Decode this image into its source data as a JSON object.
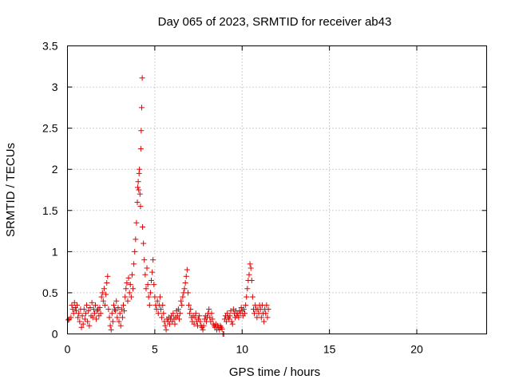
{
  "chart_data": {
    "type": "scatter",
    "title": "Day 065 of 2023, SRMTID for receiver ab43",
    "xlabel": "GPS time / hours",
    "ylabel": "SRMTID / TECUs",
    "xlim": [
      0,
      24
    ],
    "ylim": [
      0,
      3.5
    ],
    "xticks": [
      0,
      5,
      10,
      15,
      20
    ],
    "xtick_labels": [
      "0",
      "5",
      "10",
      "15",
      "20"
    ],
    "yticks": [
      0,
      0.5,
      1,
      1.5,
      2,
      2.5,
      3,
      3.5
    ],
    "ytick_labels": [
      "0",
      "0.5",
      "1",
      "1.5",
      "2",
      "2.5",
      "3",
      "3.5"
    ],
    "grid": true,
    "marker": "+",
    "series": [
      {
        "name": "SRMTID",
        "color": "#e00000",
        "points": [
          [
            0.05,
            0.17
          ],
          [
            0.1,
            0.18
          ],
          [
            0.2,
            0.2
          ],
          [
            0.25,
            0.35
          ],
          [
            0.3,
            0.3
          ],
          [
            0.35,
            0.25
          ],
          [
            0.4,
            0.38
          ],
          [
            0.45,
            0.32
          ],
          [
            0.5,
            0.28
          ],
          [
            0.55,
            0.35
          ],
          [
            0.6,
            0.2
          ],
          [
            0.65,
            0.25
          ],
          [
            0.7,
            0.15
          ],
          [
            0.75,
            0.3
          ],
          [
            0.8,
            0.08
          ],
          [
            0.85,
            0.22
          ],
          [
            0.9,
            0.12
          ],
          [
            0.95,
            0.3
          ],
          [
            1.0,
            0.18
          ],
          [
            1.05,
            0.25
          ],
          [
            1.1,
            0.35
          ],
          [
            1.15,
            0.15
          ],
          [
            1.2,
            0.28
          ],
          [
            1.25,
            0.1
          ],
          [
            1.3,
            0.32
          ],
          [
            1.35,
            0.22
          ],
          [
            1.4,
            0.38
          ],
          [
            1.45,
            0.2
          ],
          [
            1.5,
            0.3
          ],
          [
            1.55,
            0.25
          ],
          [
            1.6,
            0.35
          ],
          [
            1.65,
            0.18
          ],
          [
            1.7,
            0.28
          ],
          [
            1.75,
            0.3
          ],
          [
            1.8,
            0.22
          ],
          [
            1.85,
            0.32
          ],
          [
            1.9,
            0.25
          ],
          [
            1.95,
            0.45
          ],
          [
            2.0,
            0.5
          ],
          [
            2.05,
            0.4
          ],
          [
            2.1,
            0.55
          ],
          [
            2.15,
            0.35
          ],
          [
            2.2,
            0.48
          ],
          [
            2.25,
            0.62
          ],
          [
            2.3,
            0.7
          ],
          [
            2.35,
            0.3
          ],
          [
            2.4,
            0.2
          ],
          [
            2.45,
            0.1
          ],
          [
            2.5,
            0.05
          ],
          [
            2.55,
            0.25
          ],
          [
            2.6,
            0.15
          ],
          [
            2.65,
            0.35
          ],
          [
            2.7,
            0.3
          ],
          [
            2.75,
            0.28
          ],
          [
            2.8,
            0.4
          ],
          [
            2.85,
            0.2
          ],
          [
            2.9,
            0.32
          ],
          [
            2.95,
            0.15
          ],
          [
            3.0,
            0.25
          ],
          [
            3.05,
            0.1
          ],
          [
            3.1,
            0.3
          ],
          [
            3.15,
            0.2
          ],
          [
            3.2,
            0.35
          ],
          [
            3.25,
            0.28
          ],
          [
            3.3,
            0.45
          ],
          [
            3.35,
            0.55
          ],
          [
            3.4,
            0.62
          ],
          [
            3.45,
            0.4
          ],
          [
            3.5,
            0.68
          ],
          [
            3.55,
            0.5
          ],
          [
            3.6,
            0.6
          ],
          [
            3.65,
            0.45
          ],
          [
            3.7,
            0.72
          ],
          [
            3.75,
            0.55
          ],
          [
            3.8,
            0.85
          ],
          [
            3.85,
            1.0
          ],
          [
            3.9,
            1.15
          ],
          [
            3.95,
            1.35
          ],
          [
            4.0,
            1.6
          ],
          [
            4.02,
            1.78
          ],
          [
            4.05,
            1.85
          ],
          [
            4.08,
            1.75
          ],
          [
            4.1,
            1.95
          ],
          [
            4.12,
            2.0
          ],
          [
            4.15,
            1.7
          ],
          [
            4.18,
            1.55
          ],
          [
            4.2,
            2.25
          ],
          [
            4.22,
            2.47
          ],
          [
            4.25,
            2.75
          ],
          [
            4.28,
            3.11
          ],
          [
            4.3,
            1.3
          ],
          [
            4.35,
            1.1
          ],
          [
            4.4,
            0.9
          ],
          [
            4.45,
            0.72
          ],
          [
            4.5,
            0.55
          ],
          [
            4.55,
            0.8
          ],
          [
            4.6,
            0.6
          ],
          [
            4.65,
            0.45
          ],
          [
            4.7,
            0.35
          ],
          [
            4.75,
            0.5
          ],
          [
            4.8,
            0.65
          ],
          [
            4.85,
            0.75
          ],
          [
            4.9,
            0.9
          ],
          [
            4.95,
            0.6
          ],
          [
            5.0,
            0.45
          ],
          [
            5.05,
            0.35
          ],
          [
            5.1,
            0.3
          ],
          [
            5.15,
            0.4
          ],
          [
            5.2,
            0.25
          ],
          [
            5.25,
            0.35
          ],
          [
            5.3,
            0.45
          ],
          [
            5.35,
            0.3
          ],
          [
            5.4,
            0.2
          ],
          [
            5.45,
            0.35
          ],
          [
            5.5,
            0.25
          ],
          [
            5.55,
            0.15
          ],
          [
            5.6,
            0.1
          ],
          [
            5.65,
            0.05
          ],
          [
            5.7,
            0.18
          ],
          [
            5.75,
            0.15
          ],
          [
            5.8,
            0.2
          ],
          [
            5.85,
            0.12
          ],
          [
            5.9,
            0.18
          ],
          [
            5.95,
            0.22
          ],
          [
            6.0,
            0.15
          ],
          [
            6.05,
            0.25
          ],
          [
            6.1,
            0.18
          ],
          [
            6.15,
            0.12
          ],
          [
            6.2,
            0.2
          ],
          [
            6.25,
            0.28
          ],
          [
            6.3,
            0.22
          ],
          [
            6.35,
            0.3
          ],
          [
            6.4,
            0.18
          ],
          [
            6.45,
            0.25
          ],
          [
            6.5,
            0.4
          ],
          [
            6.55,
            0.35
          ],
          [
            6.6,
            0.45
          ],
          [
            6.65,
            0.5
          ],
          [
            6.7,
            0.55
          ],
          [
            6.75,
            0.62
          ],
          [
            6.8,
            0.7
          ],
          [
            6.85,
            0.78
          ],
          [
            6.9,
            0.5
          ],
          [
            6.95,
            0.35
          ],
          [
            7.0,
            0.25
          ],
          [
            7.05,
            0.3
          ],
          [
            7.1,
            0.2
          ],
          [
            7.15,
            0.15
          ],
          [
            7.2,
            0.22
          ],
          [
            7.25,
            0.12
          ],
          [
            7.3,
            0.2
          ],
          [
            7.35,
            0.25
          ],
          [
            7.4,
            0.15
          ],
          [
            7.45,
            0.1
          ],
          [
            7.5,
            0.18
          ],
          [
            7.55,
            0.22
          ],
          [
            7.6,
            0.15
          ],
          [
            7.65,
            0.1
          ],
          [
            7.7,
            0.08
          ],
          [
            7.75,
            0.05
          ],
          [
            7.8,
            0.1
          ],
          [
            7.85,
            0.18
          ],
          [
            7.9,
            0.22
          ],
          [
            7.95,
            0.15
          ],
          [
            8.0,
            0.2
          ],
          [
            8.05,
            0.25
          ],
          [
            8.1,
            0.3
          ],
          [
            8.15,
            0.2
          ],
          [
            8.2,
            0.15
          ],
          [
            8.25,
            0.25
          ],
          [
            8.3,
            0.18
          ],
          [
            8.35,
            0.12
          ],
          [
            8.4,
            0.1
          ],
          [
            8.45,
            0.08
          ],
          [
            8.5,
            0.12
          ],
          [
            8.55,
            0.05
          ],
          [
            8.6,
            0.1
          ],
          [
            8.65,
            0.08
          ],
          [
            8.7,
            0.05
          ],
          [
            8.75,
            0.1
          ],
          [
            8.8,
            0.08
          ],
          [
            8.85,
            0.06
          ],
          [
            8.9,
            0.0
          ],
          [
            8.95,
            0.0
          ],
          [
            9.0,
            0.18
          ],
          [
            9.05,
            0.22
          ],
          [
            9.1,
            0.15
          ],
          [
            9.15,
            0.25
          ],
          [
            9.2,
            0.2
          ],
          [
            9.25,
            0.18
          ],
          [
            9.3,
            0.22
          ],
          [
            9.35,
            0.28
          ],
          [
            9.4,
            0.15
          ],
          [
            9.45,
            0.12
          ],
          [
            9.5,
            0.3
          ],
          [
            9.55,
            0.25
          ],
          [
            9.6,
            0.2
          ],
          [
            9.65,
            0.28
          ],
          [
            9.7,
            0.22
          ],
          [
            9.75,
            0.25
          ],
          [
            9.8,
            0.2
          ],
          [
            9.85,
            0.28
          ],
          [
            9.9,
            0.25
          ],
          [
            9.95,
            0.32
          ],
          [
            10.0,
            0.28
          ],
          [
            10.05,
            0.22
          ],
          [
            10.1,
            0.3
          ],
          [
            10.15,
            0.25
          ],
          [
            10.2,
            0.35
          ],
          [
            10.25,
            0.45
          ],
          [
            10.3,
            0.55
          ],
          [
            10.35,
            0.65
          ],
          [
            10.4,
            0.72
          ],
          [
            10.45,
            0.85
          ],
          [
            10.5,
            0.8
          ],
          [
            10.55,
            0.65
          ],
          [
            10.6,
            0.45
          ],
          [
            10.65,
            0.3
          ],
          [
            10.7,
            0.25
          ],
          [
            10.75,
            0.35
          ],
          [
            10.8,
            0.3
          ],
          [
            10.85,
            0.2
          ],
          [
            10.9,
            0.3
          ],
          [
            10.95,
            0.25
          ],
          [
            11.0,
            0.35
          ],
          [
            11.05,
            0.3
          ],
          [
            11.1,
            0.2
          ],
          [
            11.15,
            0.35
          ],
          [
            11.2,
            0.25
          ],
          [
            11.25,
            0.15
          ],
          [
            11.3,
            0.3
          ],
          [
            11.35,
            0.25
          ],
          [
            11.4,
            0.35
          ],
          [
            11.45,
            0.2
          ],
          [
            11.5,
            0.3
          ]
        ]
      }
    ]
  }
}
